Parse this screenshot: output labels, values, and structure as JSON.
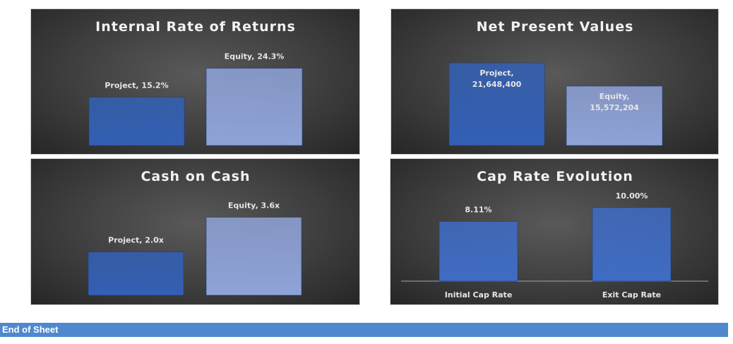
{
  "colors": {
    "project_bar": "#3360b5",
    "equity_bar": "#8fa3d8",
    "cap_bar": "#3f6cc4"
  },
  "footer": {
    "label": "End of Sheet"
  },
  "chart_data": [
    {
      "id": "irr",
      "type": "bar",
      "title": "Internal Rate of Returns",
      "categories": [
        "Project",
        "Equity"
      ],
      "values": [
        15.2,
        24.3
      ],
      "labels": [
        [
          "Project, 15.2%"
        ],
        [
          "Equity, 24.3%"
        ]
      ],
      "unit": "%",
      "ylim": [
        0,
        30
      ],
      "grid": false,
      "legend": "none"
    },
    {
      "id": "npv",
      "type": "bar",
      "title": "Net Present Values",
      "categories": [
        "Project",
        "Equity"
      ],
      "values": [
        21648400,
        15572204
      ],
      "labels": [
        [
          "Project,",
          "21,648,400"
        ],
        [
          "Equity,",
          "15,572,204"
        ]
      ],
      "ylim": [
        0,
        25000000
      ],
      "grid": false,
      "legend": "none"
    },
    {
      "id": "coc",
      "type": "bar",
      "title": "Cash on Cash",
      "categories": [
        "Project",
        "Equity"
      ],
      "values": [
        2.0,
        3.6
      ],
      "labels": [
        [
          "Project, 2.0x"
        ],
        [
          "Equity, 3.6x"
        ]
      ],
      "unit": "x",
      "ylim": [
        0,
        4.4
      ],
      "grid": false,
      "legend": "none"
    },
    {
      "id": "cap",
      "type": "bar",
      "title": "Cap Rate Evolution",
      "categories": [
        "Initial Cap Rate",
        "Exit Cap Rate"
      ],
      "values": [
        8.11,
        10.0
      ],
      "labels": [
        [
          "8.11%"
        ],
        [
          "10.00%"
        ]
      ],
      "unit": "%",
      "ylim": [
        0,
        12
      ],
      "grid": false,
      "legend": "none"
    }
  ]
}
